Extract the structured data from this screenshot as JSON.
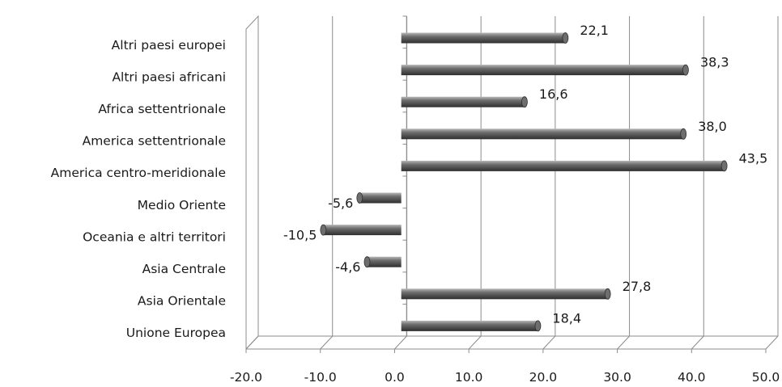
{
  "chart_data": {
    "type": "bar",
    "orientation": "horizontal",
    "categories": [
      "Altri paesi europei",
      "Altri paesi africani",
      "Africa settentrionale",
      "America settentrionale",
      "America centro-meridionale",
      "Medio Oriente",
      "Oceania e altri territori",
      "Asia Centrale",
      "Asia Orientale",
      "Unione Europea"
    ],
    "values": [
      22.1,
      38.3,
      16.6,
      38.0,
      43.5,
      -5.6,
      -10.5,
      -4.6,
      27.8,
      18.4
    ],
    "data_labels": [
      "22,1",
      "38,3",
      "16,6",
      "38,0",
      "43,5",
      "-5,6",
      "-10,5",
      "-4,6",
      "27,8",
      "18,4"
    ],
    "xlim": [
      -20,
      50
    ],
    "x_ticks": [
      -20,
      -10,
      0,
      10,
      20,
      30,
      40,
      50
    ],
    "x_tick_labels": [
      "-20.0",
      "-10.0",
      "0.0",
      "10.0",
      "20.0",
      "30.0",
      "40.0",
      "50.0"
    ],
    "title": "",
    "xlabel": "",
    "ylabel": "",
    "grid": "vertical",
    "legend": "none",
    "style": "3d-cylinder",
    "colors": {
      "bar": "#6e6e6e",
      "bar_highlight": "#b9b9b9",
      "bar_shadow": "#2e2e2e",
      "grid": "#8c8c8c",
      "text": "#1a1a1a"
    }
  }
}
